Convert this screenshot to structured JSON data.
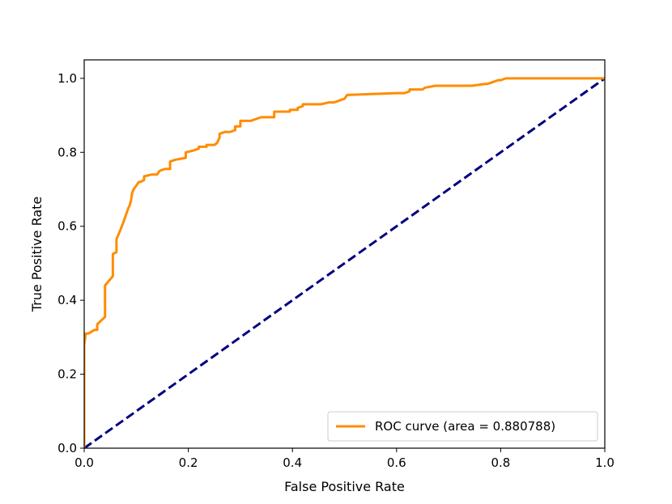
{
  "chart_data": {
    "type": "line",
    "title": "",
    "xlabel": "False Positive Rate",
    "ylabel": "True Positive Rate",
    "xlim": [
      0.0,
      1.0
    ],
    "ylim": [
      0.0,
      1.05
    ],
    "xticks": [
      "0.0",
      "0.2",
      "0.4",
      "0.6",
      "0.8",
      "1.0"
    ],
    "yticks": [
      "0.0",
      "0.2",
      "0.4",
      "0.6",
      "0.8",
      "1.0"
    ],
    "grid": false,
    "legend_position": "lower-right",
    "series": [
      {
        "name": "ROC curve (area =  0.880788)",
        "color": "#ff8c00",
        "style": "solid",
        "x": [
          0.0,
          0.0,
          0.003,
          0.008,
          0.02,
          0.025,
          0.025,
          0.04,
          0.04,
          0.055,
          0.055,
          0.062,
          0.062,
          0.068,
          0.075,
          0.08,
          0.085,
          0.087,
          0.09,
          0.092,
          0.095,
          0.1,
          0.105,
          0.108,
          0.115,
          0.115,
          0.13,
          0.14,
          0.145,
          0.155,
          0.165,
          0.165,
          0.175,
          0.195,
          0.195,
          0.21,
          0.21,
          0.22,
          0.22,
          0.235,
          0.235,
          0.25,
          0.255,
          0.26,
          0.26,
          0.27,
          0.28,
          0.29,
          0.29,
          0.3,
          0.3,
          0.32,
          0.33,
          0.34,
          0.365,
          0.365,
          0.395,
          0.395,
          0.41,
          0.41,
          0.42,
          0.42,
          0.435,
          0.455,
          0.47,
          0.48,
          0.49,
          0.5,
          0.505,
          0.6,
          0.615,
          0.625,
          0.625,
          0.65,
          0.655,
          0.675,
          0.705,
          0.745,
          0.77,
          0.775,
          0.785,
          0.795,
          0.8,
          0.81,
          0.82,
          0.83,
          1.0
        ],
        "y": [
          0.0,
          0.28,
          0.31,
          0.31,
          0.32,
          0.32,
          0.335,
          0.355,
          0.44,
          0.465,
          0.525,
          0.53,
          0.565,
          0.585,
          0.61,
          0.63,
          0.65,
          0.655,
          0.67,
          0.69,
          0.7,
          0.71,
          0.72,
          0.72,
          0.725,
          0.735,
          0.74,
          0.74,
          0.75,
          0.755,
          0.755,
          0.775,
          0.78,
          0.785,
          0.8,
          0.805,
          0.805,
          0.81,
          0.815,
          0.815,
          0.82,
          0.82,
          0.825,
          0.84,
          0.85,
          0.855,
          0.855,
          0.86,
          0.87,
          0.87,
          0.885,
          0.885,
          0.89,
          0.895,
          0.895,
          0.91,
          0.91,
          0.915,
          0.915,
          0.92,
          0.925,
          0.93,
          0.93,
          0.93,
          0.935,
          0.935,
          0.94,
          0.945,
          0.955,
          0.96,
          0.96,
          0.965,
          0.97,
          0.97,
          0.975,
          0.98,
          0.98,
          0.98,
          0.985,
          0.985,
          0.99,
          0.995,
          0.995,
          1.0,
          1.0,
          1.0,
          1.0
        ]
      },
      {
        "name": "",
        "color": "#000080",
        "style": "dashed",
        "x": [
          0.0,
          1.0
        ],
        "y": [
          0.0,
          1.0
        ]
      }
    ]
  }
}
